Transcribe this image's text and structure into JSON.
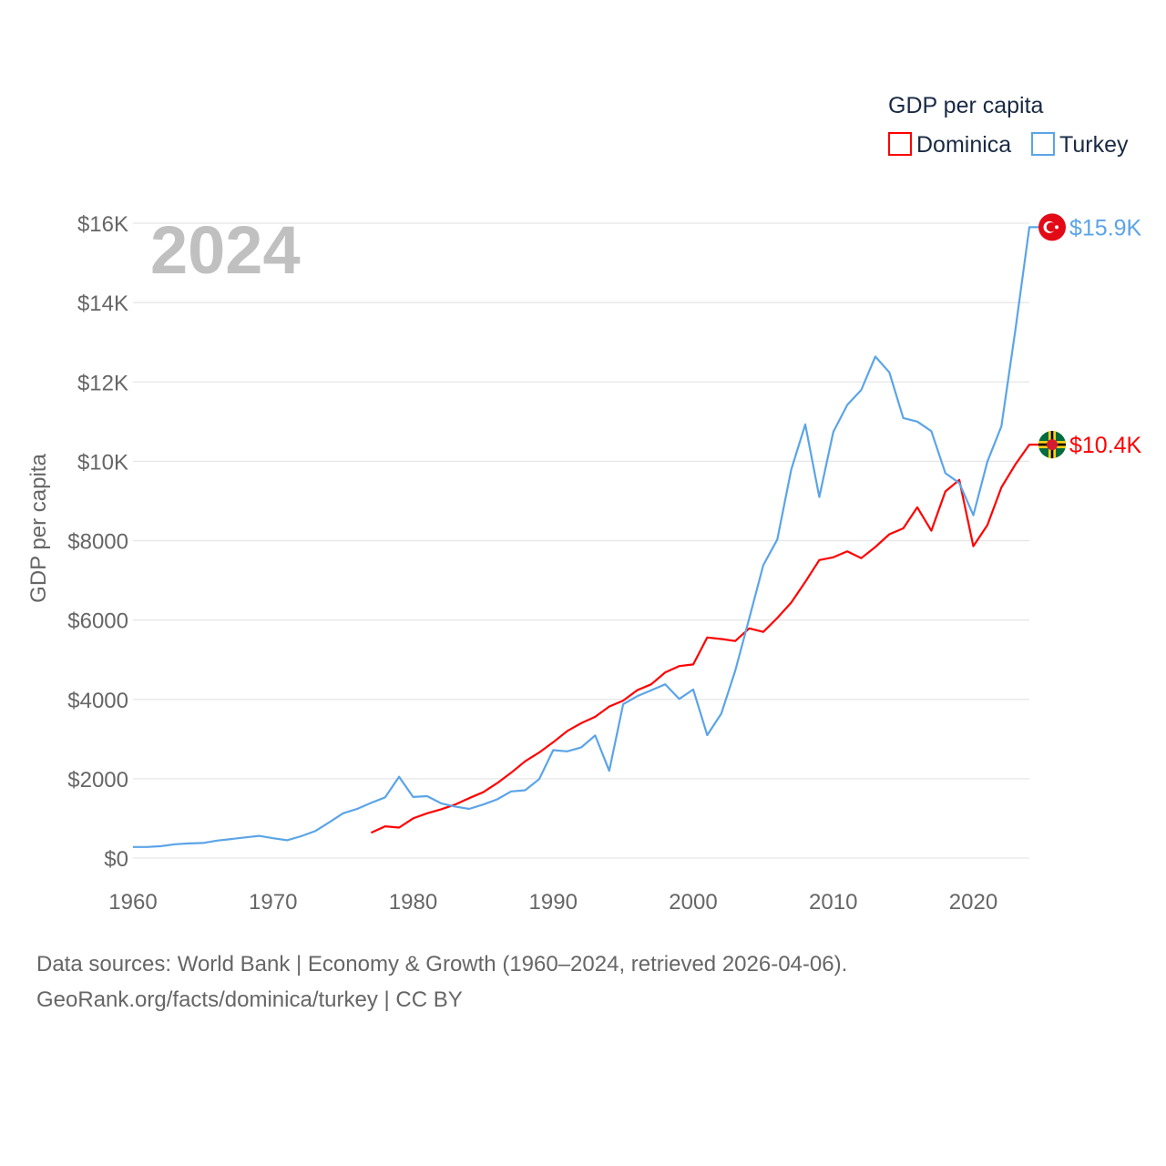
{
  "chart_data": {
    "type": "line",
    "title": "GDP per capita",
    "year_label": "2024",
    "ylabel": "GDP per capita",
    "xlabel": "",
    "xlim": [
      1960,
      2024
    ],
    "ylim": [
      0,
      16000
    ],
    "grid": true,
    "legend_placement": "top-right",
    "x_ticks": [
      1960,
      1970,
      1980,
      1990,
      2000,
      2010,
      2020
    ],
    "x_tick_labels": [
      "1960",
      "1970",
      "1980",
      "1990",
      "2000",
      "2010",
      "2020"
    ],
    "y_ticks": [
      0,
      2000,
      4000,
      6000,
      8000,
      10000,
      12000,
      14000,
      16000
    ],
    "y_tick_labels": [
      "$0",
      "$2000",
      "$4000",
      "$6000",
      "$8000",
      "$10K",
      "$12K",
      "$14K",
      "$16K"
    ],
    "series": [
      {
        "name": "Dominica",
        "color": "#ff0000",
        "end_label": "$10.4K",
        "start_year": 1977,
        "values": [
          640,
          800,
          770,
          1000,
          1130,
          1230,
          1350,
          1510,
          1660,
          1890,
          2150,
          2440,
          2660,
          2920,
          3200,
          3400,
          3560,
          3820,
          3970,
          4230,
          4380,
          4680,
          4840,
          4880,
          5560,
          5520,
          5470,
          5790,
          5700,
          6050,
          6440,
          6960,
          7510,
          7580,
          7730,
          7560,
          7840,
          8160,
          8310,
          8840,
          8250,
          9240,
          9530,
          7860,
          8390,
          9340,
          9920,
          10420
        ]
      },
      {
        "name": "Turkey",
        "color": "#5ba4e8",
        "end_label": "$15.9K",
        "start_year": 1960,
        "values": [
          280,
          280,
          300,
          350,
          370,
          380,
          440,
          480,
          520,
          560,
          500,
          450,
          550,
          680,
          900,
          1130,
          1240,
          1390,
          1530,
          2050,
          1540,
          1560,
          1380,
          1300,
          1240,
          1350,
          1480,
          1680,
          1710,
          1990,
          2720,
          2690,
          2790,
          3090,
          2200,
          3880,
          4080,
          4230,
          4380,
          4010,
          4250,
          3100,
          3640,
          4720,
          6040,
          7380,
          8030,
          9790,
          10930,
          9100,
          10740,
          11420,
          11800,
          12640,
          12240,
          11090,
          11000,
          10760,
          9700,
          9450,
          8640,
          9990,
          10880,
          13300,
          15900
        ]
      }
    ]
  },
  "footer": {
    "line1": "Data sources: World Bank | Economy & Growth (1960–2024, retrieved 2026-04-06).",
    "line2": "GeoRank.org/facts/dominica/turkey | CC BY"
  }
}
